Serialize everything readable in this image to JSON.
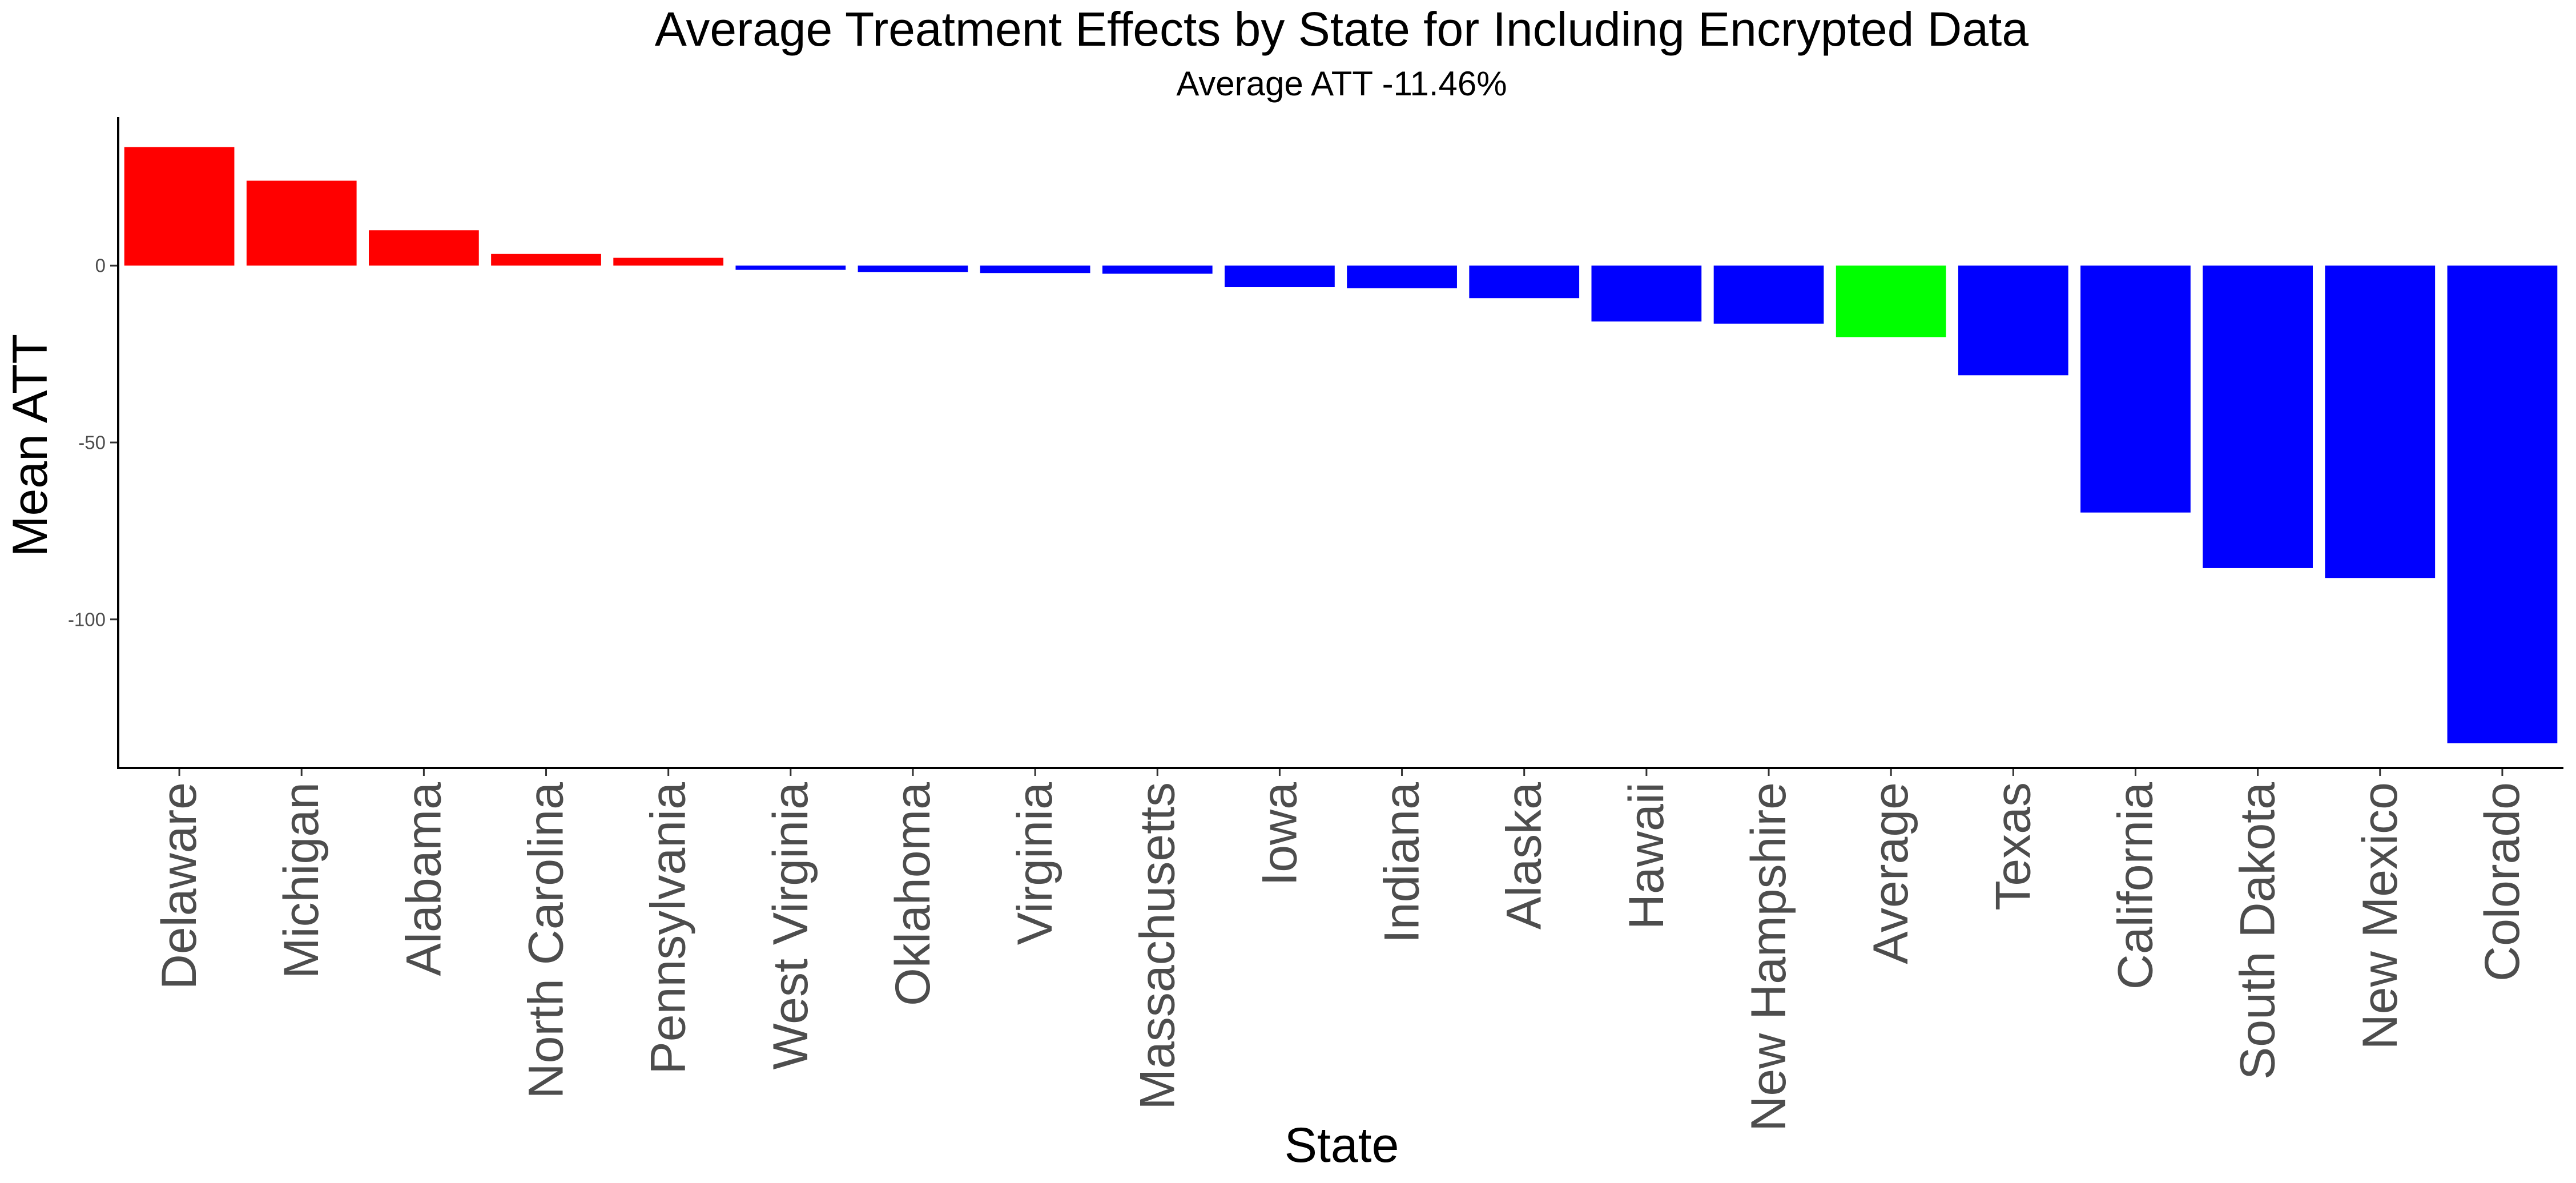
{
  "chart_data": {
    "type": "bar",
    "title": "Average Treatment Effects by State for Including Encrypted Data",
    "subtitle": "Average ATT -11.46%",
    "xlabel": "State",
    "ylabel": "Mean ATT",
    "ylim": [
      -142,
      42
    ],
    "yticks": [
      0,
      -50,
      -100
    ],
    "grid": false,
    "legend": "none",
    "categories": [
      "Delaware",
      "Michigan",
      "Alabama",
      "North Carolina",
      "Pennsylvania",
      "West Virginia",
      "Oklahoma",
      "Virginia",
      "Massachusetts",
      "Iowa",
      "Indiana",
      "Alaska",
      "Hawaii",
      "New Hampshire",
      "Average",
      "Texas",
      "California",
      "South Dakota",
      "New Mexico",
      "Colorado"
    ],
    "values": [
      33.5,
      24,
      10,
      3.3,
      2.2,
      -1.2,
      -1.8,
      -2.1,
      -2.3,
      -6.1,
      -6.4,
      -9.2,
      -15.8,
      -16.4,
      -20.2,
      -31,
      -69.8,
      -85.5,
      -88.3,
      -135
    ],
    "colors": [
      "#ff0000",
      "#ff0000",
      "#ff0000",
      "#ff0000",
      "#ff0000",
      "#0000ff",
      "#0000ff",
      "#0000ff",
      "#0000ff",
      "#0000ff",
      "#0000ff",
      "#0000ff",
      "#0000ff",
      "#0000ff",
      "#00ff00",
      "#0000ff",
      "#0000ff",
      "#0000ff",
      "#0000ff",
      "#0000ff"
    ]
  }
}
